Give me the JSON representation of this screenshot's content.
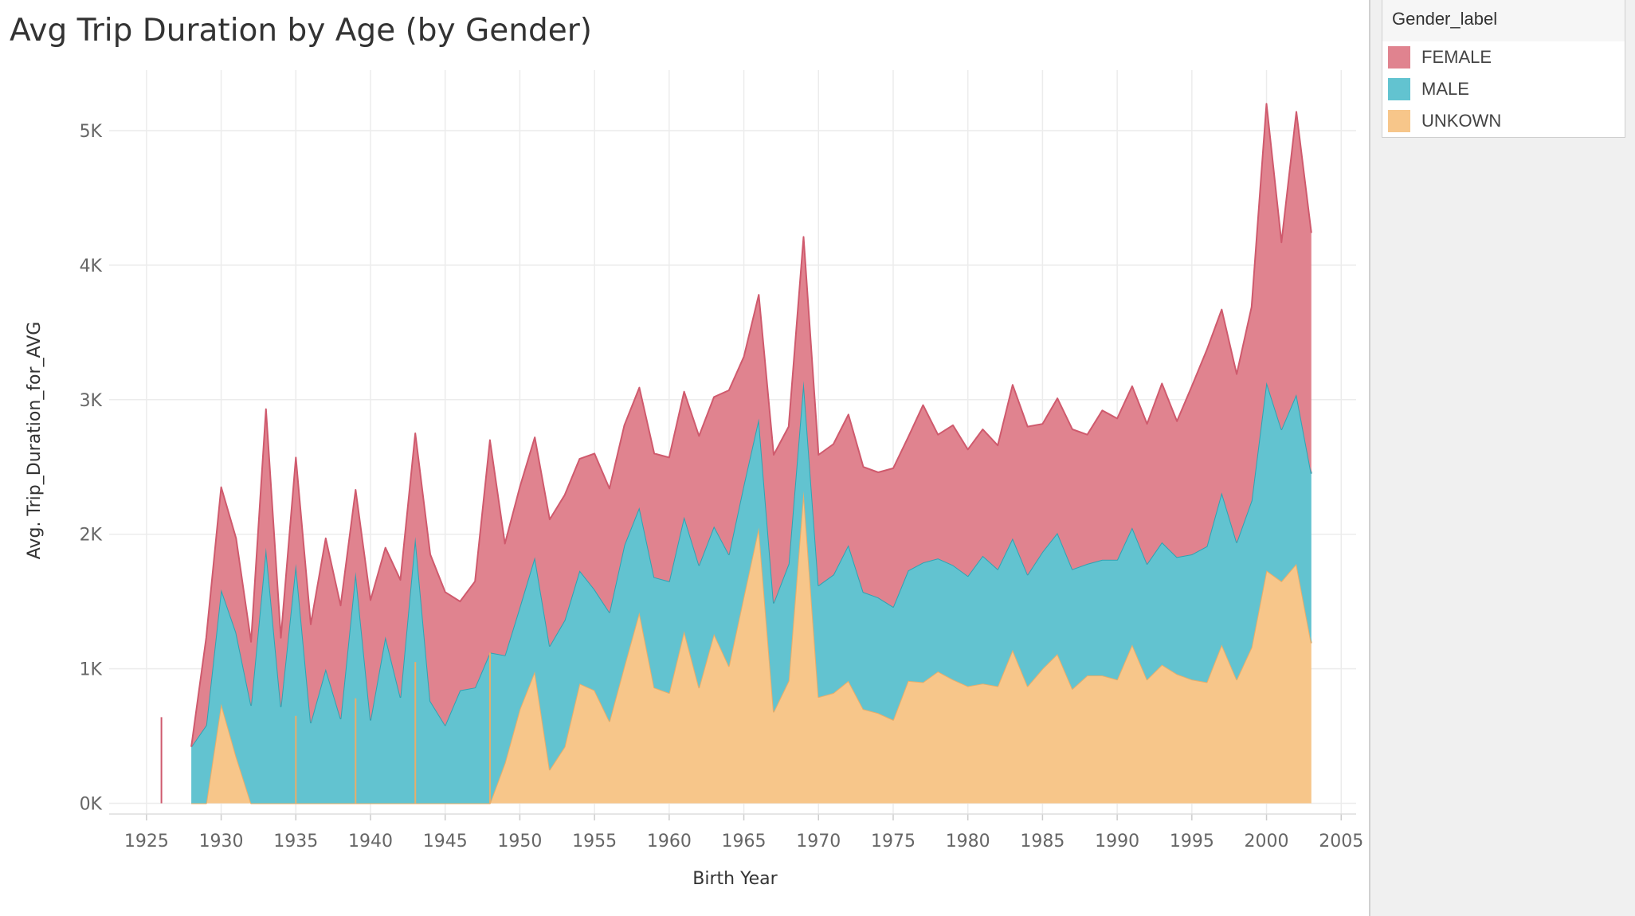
{
  "title": "Avg Trip Duration by Age (by Gender)",
  "legend": {
    "title": "Gender_label",
    "items": [
      {
        "label": "FEMALE",
        "color": "#e0838f"
      },
      {
        "label": "MALE",
        "color": "#62c3d0"
      },
      {
        "label": "UNKOWN",
        "color": "#f7c68a"
      }
    ]
  },
  "chart_data": {
    "type": "area",
    "stacked": true,
    "xlabel": "Birth Year",
    "ylabel": "Avg. Trip_Duration_for_AVG",
    "x_ticks": [
      "1925",
      "1930",
      "1935",
      "1940",
      "1945",
      "1950",
      "1955",
      "1960",
      "1965",
      "1970",
      "1975",
      "1980",
      "1985",
      "1990",
      "1995",
      "2000",
      "2005"
    ],
    "y_ticks": [
      "0K",
      "1K",
      "2K",
      "3K",
      "4K",
      "5K"
    ],
    "xlim": [
      1922.5,
      2006
    ],
    "ylim": [
      -80,
      5450
    ],
    "grid": true,
    "legend_position": "right",
    "colors": {
      "UNKOWN": "#f7c68a",
      "MALE": "#62c3d0",
      "FEMALE": "#e0838f"
    },
    "line_colors": {
      "UNKOWN": "#e8ad6a",
      "MALE": "#2fa3b2",
      "FEMALE": "#cf5a6d"
    },
    "x": [
      1928,
      1929,
      1930,
      1931,
      1932,
      1933,
      1934,
      1935,
      1936,
      1937,
      1938,
      1939,
      1940,
      1941,
      1942,
      1943,
      1944,
      1945,
      1946,
      1947,
      1948,
      1949,
      1950,
      1951,
      1952,
      1953,
      1954,
      1955,
      1956,
      1957,
      1958,
      1959,
      1960,
      1961,
      1962,
      1963,
      1964,
      1965,
      1966,
      1967,
      1968,
      1969,
      1970,
      1971,
      1972,
      1973,
      1974,
      1975,
      1976,
      1977,
      1978,
      1979,
      1980,
      1981,
      1982,
      1983,
      1984,
      1985,
      1986,
      1987,
      1988,
      1989,
      1990,
      1991,
      1992,
      1993,
      1994,
      1995,
      1996,
      1997,
      1998,
      1999,
      2000,
      2001,
      2002,
      2003
    ],
    "series": [
      {
        "name": "UNKOWN",
        "values": [
          0,
          0,
          740,
          350,
          0,
          0,
          0,
          0,
          0,
          0,
          0,
          0,
          0,
          0,
          0,
          0,
          0,
          0,
          0,
          0,
          0,
          300,
          700,
          980,
          250,
          420,
          890,
          840,
          610,
          1020,
          1420,
          860,
          820,
          1280,
          860,
          1260,
          1020,
          1540,
          2050,
          680,
          910,
          2320,
          790,
          820,
          910,
          700,
          670,
          620,
          910,
          900,
          980,
          920,
          870,
          890,
          870,
          1140,
          870,
          1000,
          1110,
          850,
          950,
          950,
          920,
          1180,
          920,
          1030,
          960,
          920,
          900,
          1180,
          920,
          1160,
          1730,
          1650,
          1780,
          1190
        ]
      },
      {
        "name": "MALE",
        "values": [
          420,
          580,
          850,
          920,
          730,
          1900,
          720,
          1780,
          600,
          1000,
          630,
          1720,
          620,
          1240,
          790,
          1980,
          760,
          580,
          840,
          860,
          1120,
          800,
          760,
          850,
          920,
          940,
          840,
          750,
          810,
          900,
          780,
          820,
          830,
          850,
          910,
          800,
          830,
          830,
          810,
          810,
          870,
          820,
          830,
          880,
          1010,
          870,
          860,
          840,
          820,
          890,
          840,
          850,
          820,
          950,
          870,
          830,
          830,
          870,
          900,
          890,
          830,
          860,
          890,
          870,
          860,
          910,
          870,
          930,
          1010,
          1130,
          1020,
          1090,
          1400,
          1130,
          1260,
          1260
        ]
      },
      {
        "name": "FEMALE",
        "values": [
          0,
          650,
          760,
          700,
          470,
          1030,
          510,
          790,
          730,
          970,
          840,
          610,
          890,
          660,
          870,
          770,
          1090,
          990,
          660,
          790,
          1580,
          830,
          890,
          890,
          940,
          930,
          830,
          1010,
          920,
          890,
          890,
          920,
          920,
          930,
          960,
          960,
          1220,
          950,
          920,
          1100,
          1020,
          1070,
          970,
          970,
          970,
          930,
          930,
          1030,
          990,
          1170,
          920,
          1040,
          940,
          940,
          920,
          1140,
          1100,
          950,
          1000,
          1040,
          960,
          1110,
          1050,
          1050,
          1040,
          1180,
          1010,
          1250,
          1460,
          1360,
          1250,
          1440,
          2070,
          1390,
          2100,
          1790
        ]
      }
    ],
    "isolated_lines": [
      {
        "series": "FEMALE",
        "x": 1926,
        "value": 640
      },
      {
        "series": "UNKOWN",
        "x": 1935,
        "value": 650
      },
      {
        "series": "UNKOWN",
        "x": 1939,
        "value": 780
      },
      {
        "series": "UNKOWN",
        "x": 1943,
        "value": 1050
      },
      {
        "series": "UNKOWN",
        "x": 1948,
        "value": 1120
      }
    ]
  }
}
